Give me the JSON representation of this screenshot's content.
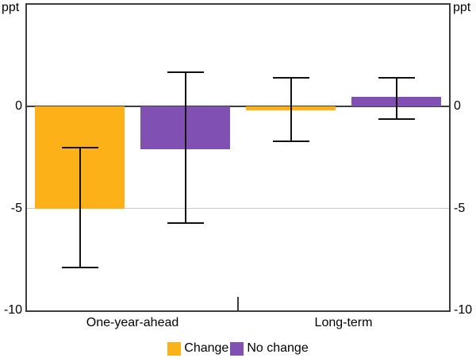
{
  "chart_data": {
    "type": "bar",
    "title": "",
    "unit_label": "ppt",
    "ylabel": "",
    "xlabel": "",
    "ylim": [
      -10,
      5
    ],
    "yticks": [
      0,
      -5,
      -10
    ],
    "gridlines": [
      -5
    ],
    "zero_line": 0,
    "grid": "partial",
    "legend_position": "bottom-center",
    "series_colors": {
      "Change": "#FBB117",
      "No change": "#8050B2"
    },
    "error_bar_color": "#111111",
    "groups": [
      {
        "label": "One-year-ahead",
        "bars": [
          {
            "series": "Change",
            "value": -5.0,
            "ci_low": -7.9,
            "ci_high": -2.0
          },
          {
            "series": "No change",
            "value": -2.1,
            "ci_low": -5.7,
            "ci_high": 1.7
          }
        ]
      },
      {
        "label": "Long-term",
        "bars": [
          {
            "series": "Change",
            "value": -0.2,
            "ci_low": -1.7,
            "ci_high": 1.4
          },
          {
            "series": "No change",
            "value": 0.5,
            "ci_low": -0.6,
            "ci_high": 1.4
          }
        ]
      }
    ],
    "legend": [
      {
        "label": "Change",
        "color": "#FBB117"
      },
      {
        "label": "No change",
        "color": "#8050B2"
      }
    ]
  }
}
